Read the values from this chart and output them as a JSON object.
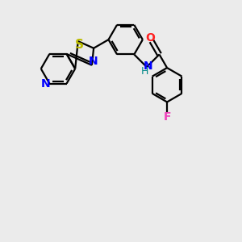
{
  "background_color": "#ebebeb",
  "line_color": "#000000",
  "line_width": 1.6,
  "atom_colors": {
    "N": "#0000ff",
    "S": "#bbbb00",
    "O": "#ff2020",
    "F": "#ee44bb",
    "NH_N": "#0000ff",
    "NH_H": "#008888"
  },
  "font_size": 10,
  "figsize": [
    3.0,
    3.0
  ],
  "dpi": 100
}
